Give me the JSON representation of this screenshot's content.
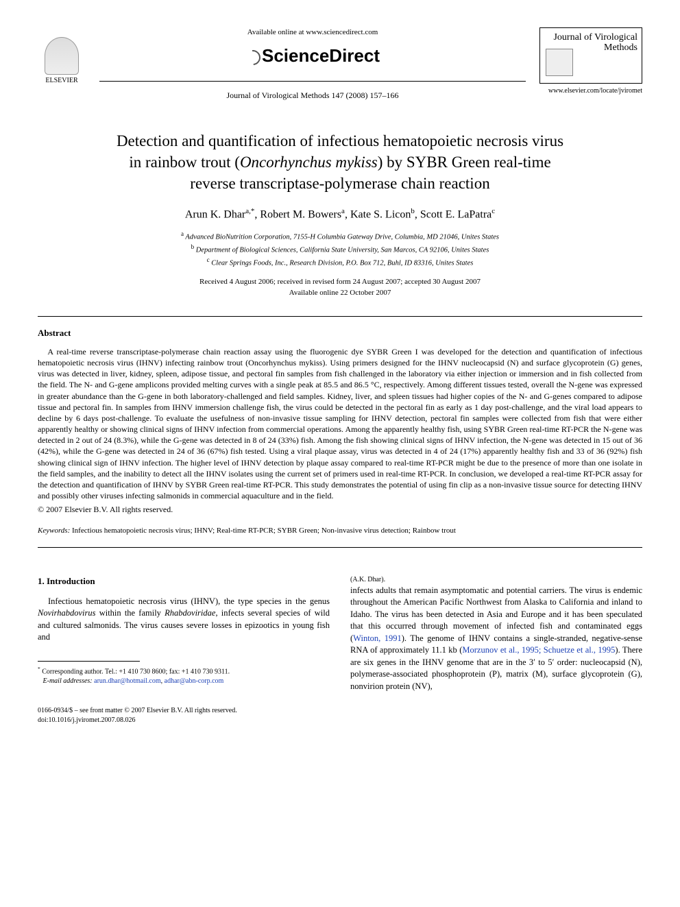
{
  "header": {
    "elsevier_label": "ELSEVIER",
    "available_online": "Available online at www.sciencedirect.com",
    "sciencedirect": "ScienceDirect",
    "journal_ref": "Journal of Virological Methods 147 (2008) 157–166",
    "journal_box_title": "Journal of Virological Methods",
    "journal_url": "www.elsevier.com/locate/jviromet"
  },
  "title": {
    "line1": "Detection and quantification of infectious hematopoietic necrosis virus",
    "line2_pre": "in rainbow trout (",
    "line2_italic": "Oncorhynchus mykiss",
    "line2_post": ") by SYBR Green real-time",
    "line3": "reverse transcriptase-polymerase chain reaction"
  },
  "authors": {
    "a1_name": "Arun K. Dhar",
    "a1_sup": "a,",
    "a1_star": "*",
    "a2_name": "Robert M. Bowers",
    "a2_sup": "a",
    "a3_name": "Kate S. Licon",
    "a3_sup": "b",
    "a4_name": "Scott E. LaPatra",
    "a4_sup": "c"
  },
  "affiliations": {
    "a": "Advanced BioNutrition Corporation, 7155-H Columbia Gateway Drive, Columbia, MD 21046, Unites States",
    "b": "Department of Biological Sciences, California State University, San Marcos, CA 92106, Unites States",
    "c": "Clear Springs Foods, Inc., Research Division, P.O. Box 712, Buhl, ID 83316, Unites States"
  },
  "dates": {
    "line1": "Received 4 August 2006; received in revised form 24 August 2007; accepted 30 August 2007",
    "line2": "Available online 22 October 2007"
  },
  "abstract": {
    "heading": "Abstract",
    "text": "A real-time reverse transcriptase-polymerase chain reaction assay using the fluorogenic dye SYBR Green I was developed for the detection and quantification of infectious hematopoietic necrosis virus (IHNV) infecting rainbow trout (Oncorhynchus mykiss). Using primers designed for the IHNV nucleocapsid (N) and surface glycoprotein (G) genes, virus was detected in liver, kidney, spleen, adipose tissue, and pectoral fin samples from fish challenged in the laboratory via either injection or immersion and in fish collected from the field. The N- and G-gene amplicons provided melting curves with a single peak at 85.5 and 86.5 °C, respectively. Among different tissues tested, overall the N-gene was expressed in greater abundance than the G-gene in both laboratory-challenged and field samples. Kidney, liver, and spleen tissues had higher copies of the N- and G-genes compared to adipose tissue and pectoral fin. In samples from IHNV immersion challenge fish, the virus could be detected in the pectoral fin as early as 1 day post-challenge, and the viral load appears to decline by 6 days post-challenge. To evaluate the usefulness of non-invasive tissue sampling for IHNV detection, pectoral fin samples were collected from fish that were either apparently healthy or showing clinical signs of IHNV infection from commercial operations. Among the apparently healthy fish, using SYBR Green real-time RT-PCR the N-gene was detected in 2 out of 24 (8.3%), while the G-gene was detected in 8 of 24 (33%) fish. Among the fish showing clinical signs of IHNV infection, the N-gene was detected in 15 out of 36 (42%), while the G-gene was detected in 24 of 36 (67%) fish tested. Using a viral plaque assay, virus was detected in 4 of 24 (17%) apparently healthy fish and 33 of 36 (92%) fish showing clinical sign of IHNV infection. The higher level of IHNV detection by plaque assay compared to real-time RT-PCR might be due to the presence of more than one isolate in the field samples, and the inability to detect all the IHNV isolates using the current set of primers used in real-time RT-PCR. In conclusion, we developed a real-time RT-PCR assay for the detection and quantification of IHNV by SYBR Green real-time RT-PCR. This study demonstrates the potential of using fin clip as a non-invasive tissue source for detecting IHNV and possibly other viruses infecting salmonids in commercial aquaculture and in the field.",
    "copyright": "© 2007 Elsevier B.V. All rights reserved."
  },
  "keywords": {
    "label": "Keywords:",
    "values": "Infectious hematopoietic necrosis virus; IHNV; Real-time RT-PCR; SYBR Green; Non-invasive virus detection; Rainbow trout"
  },
  "intro": {
    "heading": "1. Introduction",
    "p1_part1": "Infectious hematopoietic necrosis virus (IHNV), the type species in the genus ",
    "p1_italic1": "Novirhabdovirus",
    "p1_part2": " within the family ",
    "p1_italic2": "Rhabdoviridae",
    "p1_part3": ", infects several species of wild and cultured salmonids. The virus causes severe losses in epizootics in young fish and ",
    "p2_part1": "infects adults that remain asymptomatic and potential carriers. The virus is endemic throughout the American Pacific Northwest from Alaska to California and inland to Idaho. The virus has been detected in Asia and Europe and it has been speculated that this occurred through movement of infected fish and contaminated eggs (",
    "p2_ref1": "Winton, 1991",
    "p2_part2": "). The genome of IHNV contains a single-stranded, negative-sense RNA of approximately 11.1 kb (",
    "p2_ref2": "Morzunov et al., 1995; Schuetze et al., 1995",
    "p2_part3": "). There are six genes in the IHNV genome that are in the 3′ to 5′ order: nucleocapsid (N), polymerase-associated phosphoprotein (P), matrix (M), surface glycoprotein (G), nonvirion protein (NV),"
  },
  "footnote": {
    "corresponding": "Corresponding author. Tel.: +1 410 730 8600; fax: +1 410 730 9311.",
    "email_label": "E-mail addresses:",
    "email1": "arun.dhar@hotmail.com",
    "email2": "adhar@abn-corp.com",
    "author_paren": "(A.K. Dhar)."
  },
  "footer": {
    "line1": "0166-0934/$ – see front matter © 2007 Elsevier B.V. All rights reserved.",
    "line2": "doi:10.1016/j.jviromet.2007.08.026"
  },
  "colors": {
    "link": "#1a3fb5",
    "text": "#000000",
    "background": "#ffffff"
  }
}
